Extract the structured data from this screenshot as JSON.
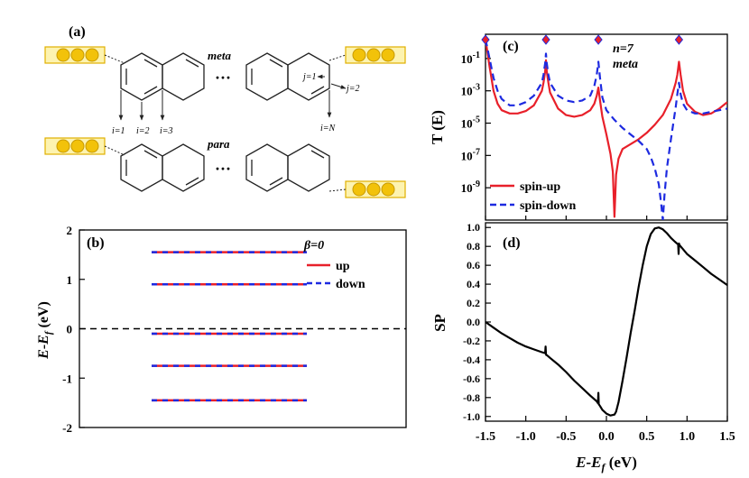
{
  "panel_a": {
    "label": "(a)",
    "meta": "meta",
    "para": "para",
    "dots": "···",
    "i_labels": [
      "i=1",
      "i=2",
      "i=3",
      "i=N"
    ],
    "j_labels": [
      "j=1",
      "j=2"
    ]
  },
  "colors": {
    "up": "#e8202a",
    "down": "#1d2ae0",
    "electrode_fill": "#fdf3b0",
    "electrode_stroke": "#e0b000",
    "atom": "#f2c20a"
  },
  "chart_data": [
    {
      "panel": "(b)",
      "type": "line",
      "ylabel": "E-E_f (eV)",
      "ylim": [
        -2,
        2
      ],
      "yticks": [
        -2,
        -1,
        0,
        1,
        2
      ],
      "annotation": "β=0",
      "legend": {
        "placement": "top-right",
        "entries": [
          "up",
          "down"
        ]
      },
      "fermi_level": 0,
      "series": [
        {
          "name": "up",
          "levels": [
            1.55,
            0.9,
            -0.1,
            -0.75,
            -1.45
          ]
        },
        {
          "name": "down",
          "levels": [
            1.55,
            0.9,
            -0.1,
            -0.75,
            -1.45
          ]
        }
      ]
    },
    {
      "panel": "(c)",
      "type": "line",
      "ylabel": "T (E)",
      "scale": "log",
      "xlim": [
        -1.5,
        1.5
      ],
      "ylim_exp": [
        -11,
        0.5
      ],
      "yticks": [
        "10^-1",
        "10^-3",
        "10^-5",
        "10^-7",
        "10^-9"
      ],
      "annotations": [
        "n=7",
        "meta"
      ],
      "legend": {
        "placement": "bottom-left",
        "entries": [
          "spin-up",
          "spin-down"
        ]
      },
      "diamond_markers_x": [
        -1.5,
        -0.75,
        -0.1,
        0.9
      ],
      "series": [
        {
          "name": "spin-up",
          "x": [
            -1.5,
            -1.45,
            -1.4,
            -1.35,
            -1.3,
            -1.2,
            -1.1,
            -1.0,
            -0.9,
            -0.8,
            -0.78,
            -0.76,
            -0.75,
            -0.74,
            -0.72,
            -0.7,
            -0.6,
            -0.5,
            -0.4,
            -0.3,
            -0.2,
            -0.15,
            -0.12,
            -0.1,
            -0.08,
            -0.05,
            0.0,
            0.05,
            0.08,
            0.1,
            0.12,
            0.15,
            0.2,
            0.3,
            0.4,
            0.5,
            0.6,
            0.7,
            0.8,
            0.86,
            0.88,
            0.9,
            0.92,
            0.95,
            1.0,
            1.1,
            1.2,
            1.3,
            1.4,
            1.5
          ],
          "log10_T": [
            0.2,
            -1.5,
            -3.0,
            -3.8,
            -4.2,
            -4.4,
            -4.4,
            -4.25,
            -3.9,
            -3.0,
            -2.5,
            -1.8,
            -1.1,
            -1.8,
            -2.5,
            -3.1,
            -4.1,
            -4.5,
            -4.6,
            -4.5,
            -4.2,
            -3.8,
            -3.3,
            -2.8,
            -3.6,
            -4.6,
            -5.7,
            -6.9,
            -8.0,
            -10.8,
            -8.2,
            -7.2,
            -6.6,
            -6.3,
            -6.0,
            -5.6,
            -5.1,
            -4.5,
            -3.5,
            -2.5,
            -2.0,
            -1.2,
            -2.0,
            -3.0,
            -3.8,
            -4.3,
            -4.5,
            -4.4,
            -4.1,
            -3.7
          ]
        },
        {
          "name": "spin-down",
          "x": [
            -1.5,
            -1.45,
            -1.4,
            -1.35,
            -1.3,
            -1.2,
            -1.1,
            -1.0,
            -0.9,
            -0.8,
            -0.78,
            -0.76,
            -0.75,
            -0.74,
            -0.72,
            -0.7,
            -0.6,
            -0.5,
            -0.4,
            -0.3,
            -0.2,
            -0.15,
            -0.12,
            -0.1,
            -0.08,
            -0.05,
            0.0,
            0.1,
            0.2,
            0.3,
            0.4,
            0.5,
            0.55,
            0.6,
            0.65,
            0.68,
            0.7,
            0.72,
            0.75,
            0.8,
            0.86,
            0.88,
            0.9,
            0.92,
            0.95,
            1.0,
            1.1,
            1.2,
            1.3,
            1.4,
            1.5
          ],
          "log10_T": [
            0.2,
            -1.0,
            -2.2,
            -3.0,
            -3.5,
            -3.9,
            -3.9,
            -3.7,
            -3.3,
            -2.5,
            -2.0,
            -1.3,
            -0.7,
            -1.3,
            -2.0,
            -2.5,
            -3.3,
            -3.6,
            -3.7,
            -3.6,
            -3.3,
            -2.7,
            -2.0,
            -1.2,
            -2.2,
            -3.4,
            -4.2,
            -4.8,
            -5.3,
            -5.7,
            -6.1,
            -6.6,
            -7.1,
            -7.8,
            -8.8,
            -10.0,
            -11.0,
            -9.5,
            -7.8,
            -6.0,
            -4.0,
            -3.2,
            -2.5,
            -3.2,
            -3.8,
            -4.2,
            -4.4,
            -4.4,
            -4.3,
            -4.2,
            -4.1
          ]
        }
      ]
    },
    {
      "panel": "(d)",
      "type": "line",
      "ylabel": "SP",
      "xlabel": "E-E_f (eV)",
      "xlim": [
        -1.5,
        1.5
      ],
      "ylim": [
        -1.05,
        1.05
      ],
      "xtick_labels": [
        "-1.5",
        "-1.0",
        "-0.5",
        "0.0",
        "0.5",
        "1.0",
        "1.5"
      ],
      "ytick_labels": [
        "1.0",
        "0.8",
        "0.6",
        "0.4",
        "0.2",
        "0.0",
        "-0.2",
        "-0.4",
        "-0.6",
        "-0.8",
        "-1.0"
      ],
      "series": [
        {
          "name": "SP",
          "x": [
            -1.5,
            -1.4,
            -1.3,
            -1.2,
            -1.1,
            -1.0,
            -0.9,
            -0.8,
            -0.76,
            -0.755,
            -0.75,
            -0.745,
            -0.74,
            -0.7,
            -0.6,
            -0.5,
            -0.4,
            -0.3,
            -0.2,
            -0.12,
            -0.105,
            -0.1,
            -0.095,
            -0.08,
            -0.05,
            0.0,
            0.05,
            0.1,
            0.12,
            0.15,
            0.2,
            0.25,
            0.3,
            0.35,
            0.4,
            0.45,
            0.5,
            0.55,
            0.6,
            0.65,
            0.7,
            0.75,
            0.8,
            0.85,
            0.89,
            0.895,
            0.9,
            0.905,
            0.91,
            0.95,
            1.0,
            1.1,
            1.2,
            1.3,
            1.4,
            1.5
          ],
          "y": [
            0.0,
            -0.06,
            -0.12,
            -0.17,
            -0.22,
            -0.26,
            -0.29,
            -0.32,
            -0.33,
            -0.26,
            -0.34,
            -0.35,
            -0.35,
            -0.38,
            -0.45,
            -0.53,
            -0.62,
            -0.7,
            -0.78,
            -0.84,
            -0.86,
            -0.75,
            -0.87,
            -0.89,
            -0.93,
            -0.97,
            -0.99,
            -0.98,
            -0.95,
            -0.85,
            -0.62,
            -0.38,
            -0.12,
            0.12,
            0.37,
            0.6,
            0.8,
            0.93,
            0.99,
            1.0,
            0.98,
            0.94,
            0.89,
            0.85,
            0.82,
            0.72,
            0.83,
            0.82,
            0.81,
            0.77,
            0.72,
            0.65,
            0.58,
            0.51,
            0.45,
            0.39
          ]
        }
      ]
    }
  ]
}
